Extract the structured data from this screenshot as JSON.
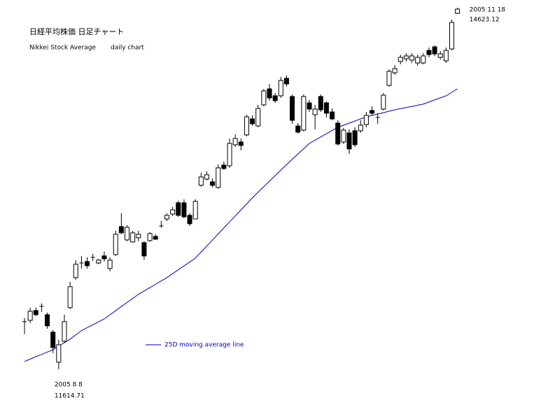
{
  "chart_data": {
    "type": "candlestick",
    "title": "日経平均株価 日足チャート",
    "subtitle": "Nikkei Stock Average",
    "note": "daily chart",
    "categories": [
      null,
      null,
      null,
      null,
      null,
      null,
      "2005 8 8",
      null,
      null,
      null,
      null,
      null,
      null,
      null,
      null,
      null,
      null,
      null,
      null,
      null,
      null,
      null,
      null,
      null,
      null,
      null,
      null,
      null,
      null,
      null,
      null,
      null,
      null,
      null,
      null,
      null,
      null,
      null,
      null,
      null,
      null,
      null,
      null,
      null,
      null,
      null,
      null,
      null,
      null,
      null,
      null,
      null,
      null,
      null,
      null,
      null,
      null,
      null,
      null,
      null,
      null,
      null,
      null,
      null,
      null,
      null,
      null,
      null,
      null,
      null,
      null,
      null,
      null,
      null,
      null,
      null,
      "2005 11 18"
    ],
    "open": [
      12012,
      12023,
      12105,
      12140,
      12070,
      11924,
      11673,
      11848,
      12129,
      12380,
      12502,
      12514,
      12549,
      12502,
      12561,
      12456,
      12572,
      12806,
      12695,
      12678,
      12713,
      12672,
      12689,
      12724,
      12812,
      12870,
      12911,
      13005,
      13005,
      12900,
      12870,
      13151,
      13203,
      13180,
      13133,
      13320,
      13314,
      13490,
      13513,
      13572,
      13706,
      13647,
      13823,
      13957,
      13899,
      13899,
      14045,
      13893,
      13647,
      13612,
      13840,
      13741,
      13893,
      13840,
      13764,
      13671,
      13513,
      13589,
      13607,
      13607,
      13659,
      13776,
      13718,
      13788,
      13986,
      14091,
      14185,
      14208,
      14197,
      14173,
      14173,
      14278,
      14308,
      14220,
      14191,
      14290,
      14588
    ],
    "high": [
      12041,
      12129,
      12129,
      12164,
      12088,
      11942,
      11860,
      12070,
      12345,
      12526,
      12561,
      12549,
      12578,
      12537,
      12596,
      12549,
      12771,
      12917,
      12818,
      12771,
      12771,
      12684,
      12760,
      12742,
      12853,
      12917,
      12970,
      13022,
      13034,
      12917,
      13034,
      13256,
      13268,
      13209,
      13326,
      13350,
      13542,
      13577,
      13542,
      13741,
      13735,
      13823,
      13957,
      13998,
      13922,
      14056,
      14068,
      13910,
      13671,
      13910,
      13864,
      13823,
      13910,
      13852,
      13793,
      13694,
      13630,
      13618,
      13636,
      13694,
      13764,
      13811,
      13753,
      13922,
      14121,
      14156,
      14243,
      14255,
      14255,
      14243,
      14255,
      14302,
      14319,
      14272,
      14302,
      14535,
      14635
    ],
    "low": [
      11907,
      12000,
      12058,
      12093,
      11953,
      11749,
      11614.71,
      11836,
      12117,
      12362,
      12456,
      12456,
      12520,
      12491,
      12514,
      12432,
      12561,
      12742,
      12684,
      12672,
      12684,
      12526,
      12678,
      12695,
      12795,
      12853,
      12894,
      12888,
      12876,
      12812,
      12870,
      13139,
      13192,
      13133,
      13122,
      13279,
      13297,
      13472,
      13443,
      13560,
      13647,
      13636,
      13811,
      13858,
      13840,
      13881,
      13975,
      13665,
      13583,
      13601,
      13764,
      13618,
      13764,
      13718,
      13694,
      13484,
      13496,
      13414,
      13472,
      13589,
      13636,
      13735,
      13665,
      13776,
      13975,
      14074,
      14162,
      14185,
      14173,
      14150,
      14162,
      14220,
      14232,
      14202,
      14173,
      14278,
      14582
    ],
    "close": [
      12012,
      12099,
      12070,
      12140,
      11977,
      11795,
      11819,
      12012,
      12304,
      12491,
      12502,
      12479,
      12549,
      12526,
      12537,
      12526,
      12742,
      12754,
      12800,
      12754,
      12742,
      12561,
      12748,
      12701,
      12812,
      12900,
      12946,
      12900,
      12888,
      12830,
      13017,
      13221,
      13239,
      13151,
      13297,
      13291,
      13501,
      13542,
      13484,
      13723,
      13665,
      13793,
      13940,
      13881,
      13858,
      14027,
      13998,
      13694,
      13595,
      13893,
      13788,
      13788,
      13782,
      13753,
      13706,
      13496,
      13612,
      13455,
      13490,
      13653,
      13735,
      13753,
      13718,
      13904,
      14103,
      14126,
      14220,
      14232,
      14232,
      14220,
      14232,
      14243,
      14249,
      14249,
      14278,
      14512,
      14623.12
    ],
    "up_color": "#ffffff",
    "down_color": "#000000",
    "series": [
      {
        "name": "25D moving average line",
        "color": "#0000cc",
        "values": [
          11679,
          11699,
          11719,
          11738,
          11758,
          11778,
          11807,
          11837,
          11866,
          11901,
          11936,
          11961,
          11986,
          12010,
          12035,
          12069,
          12103,
          12138,
          12172,
          12206,
          12240,
          12268,
          12296,
          12324,
          12352,
          12380,
          12413,
          12445,
          12478,
          12510,
          12543,
          12593,
          12644,
          12694,
          12745,
          12795,
          12845,
          12895,
          12946,
          12996,
          13046,
          13093,
          13139,
          13186,
          13232,
          13279,
          13323,
          13368,
          13412,
          13457,
          13501,
          13528,
          13555,
          13582,
          13609,
          13636,
          13653,
          13671,
          13688,
          13706,
          13723,
          13735,
          13747,
          13758,
          13770,
          13782,
          13791,
          13801,
          13810,
          13820,
          13829,
          13847,
          13864,
          13882,
          13899,
          13928,
          13957
        ]
      }
    ],
    "ylim": [
      11544,
      14670
    ]
  }
}
